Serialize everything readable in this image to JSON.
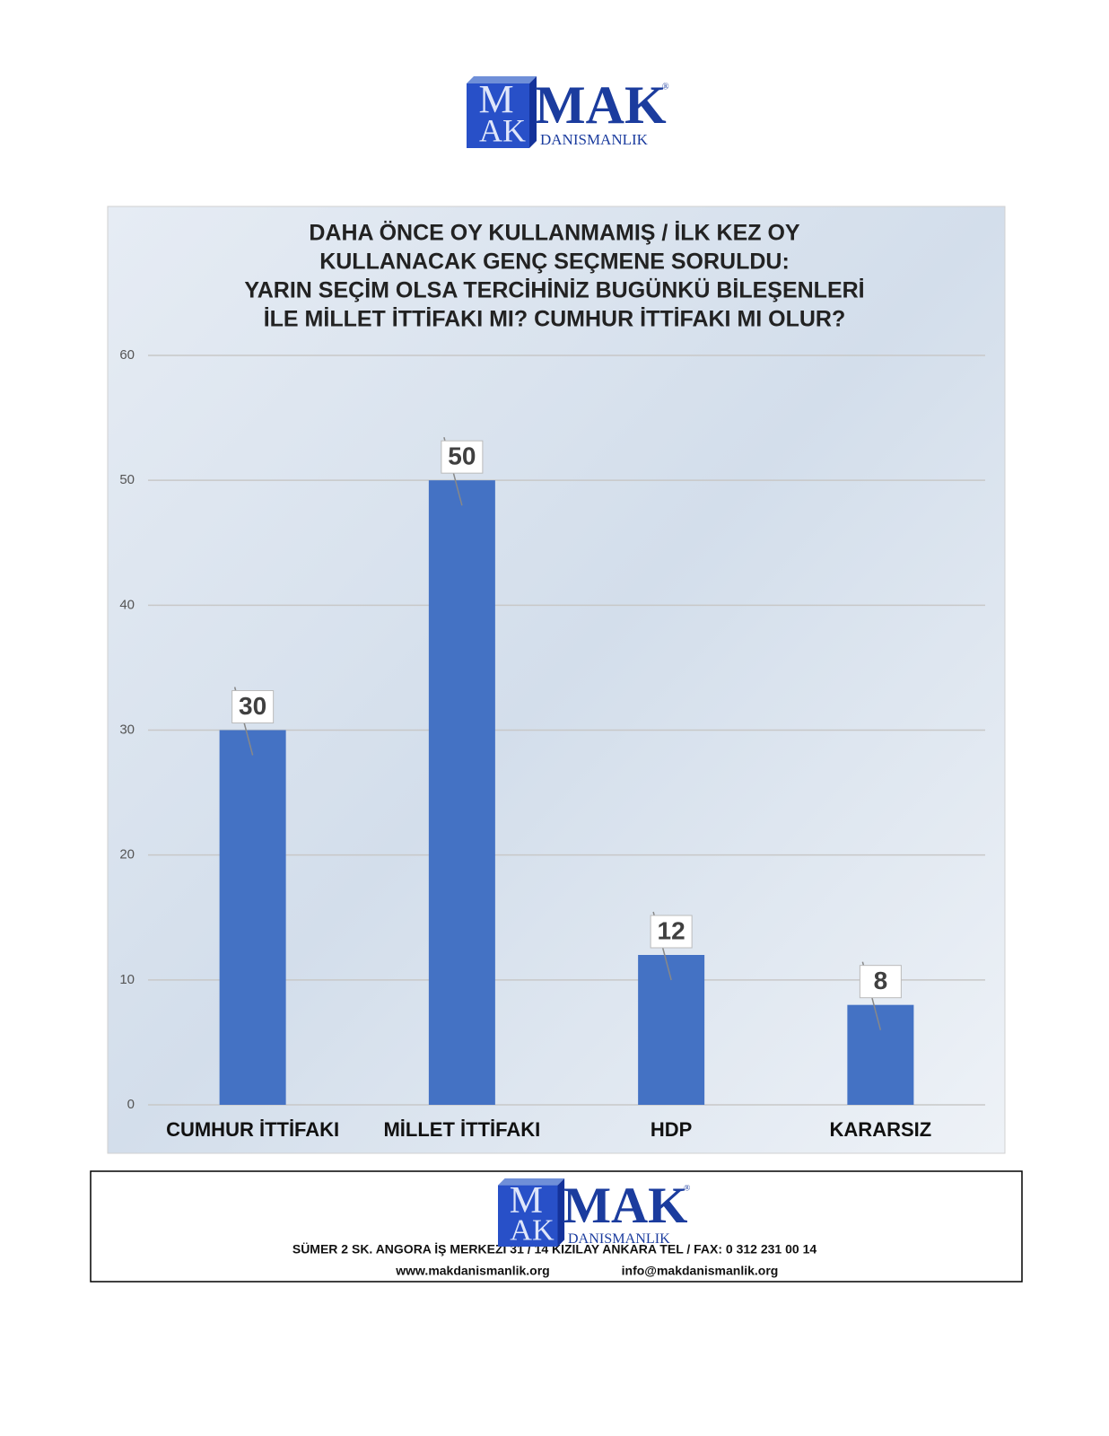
{
  "logo": {
    "monogram_top": "M",
    "monogram_bottom": "AK",
    "name": "MAK",
    "registered": "®",
    "subtitle": "DANISMANLIK"
  },
  "chart_data": {
    "type": "bar",
    "title": [
      "DAHA ÖNCE OY KULLANMAMIŞ / İLK KEZ OY",
      "KULLANACAK GENÇ SEÇMENE SORULDU:",
      "YARIN SEÇİM OLSA TERCİHİNİZ BUGÜNKÜ BİLEŞENLERİ",
      "İLE MİLLET İTTİFAKI MI? CUMHUR İTTİFAKI MI OLUR?"
    ],
    "categories": [
      "CUMHUR İTTİFAKI",
      "MİLLET İTTİFAKI",
      "HDP",
      "KARARSIZ"
    ],
    "values": [
      30,
      50,
      12,
      8
    ],
    "color": "#4472c4",
    "ylim": [
      0,
      60
    ],
    "yticks": [
      0,
      10,
      20,
      30,
      40,
      50,
      60
    ],
    "grid": true
  },
  "footer": {
    "address": "SÜMER 2 SK. ANGORA İŞ MERKEZİ 31 / 14 KIZILAY   ANKARA TEL / FAX: 0 312 231 00 14",
    "website": "www.makdanismanlik.org",
    "email": "info@makdanismanlik.org"
  }
}
